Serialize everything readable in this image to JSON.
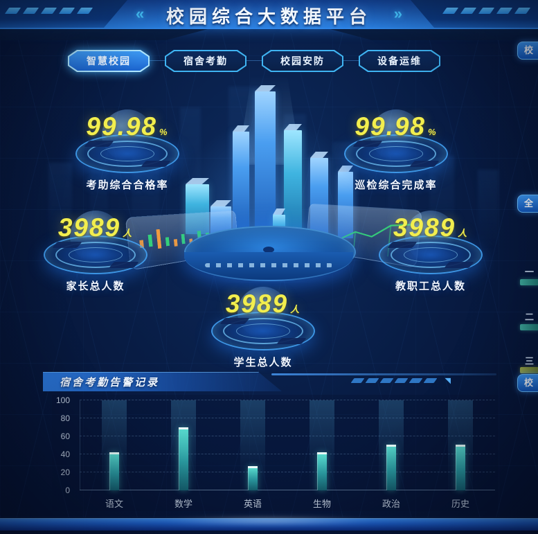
{
  "header": {
    "title": "校园综合大数据平台",
    "left_chevron": "«",
    "right_chevron": "»"
  },
  "tabs": [
    {
      "label": "智慧校园",
      "active": true
    },
    {
      "label": "宿舍考勤",
      "active": false
    },
    {
      "label": "校园安防",
      "active": false
    },
    {
      "label": "设备运维",
      "active": false
    }
  ],
  "stats": [
    {
      "value": "99.98",
      "unit": "%",
      "label": "考助综合合格率"
    },
    {
      "value": "99.98",
      "unit": "%",
      "label": "巡检综合完成率"
    },
    {
      "value": "3989",
      "unit": "人",
      "label": "家长总人数"
    },
    {
      "value": "3989",
      "unit": "人",
      "label": "教职工总人数"
    },
    {
      "value": "3989",
      "unit": "人",
      "label": "学生总人数"
    }
  ],
  "alarm_panel": {
    "title": "宿舍考勤告警记录"
  },
  "chart_data": {
    "type": "bar",
    "title": "宿舍考勤告警记录",
    "categories": [
      "语文",
      "数学",
      "英语",
      "生物",
      "政治",
      "历史"
    ],
    "values": [
      42,
      70,
      27,
      42,
      51,
      51
    ],
    "xlabel": "",
    "ylabel": "",
    "ylim": [
      0,
      100
    ],
    "yticks": [
      0,
      20,
      40,
      60,
      80,
      100
    ],
    "grid": "horizontal-dashed",
    "legend": "none",
    "bar_color": "#49cfc3",
    "band_color": "rgba(70,150,190,0.22)"
  },
  "right_edge": {
    "top_tab_label": "校",
    "middle_tab_label": "全",
    "bottom_tab_label": "校",
    "rank_rows": [
      {
        "label": "一"
      },
      {
        "label": "二"
      },
      {
        "label": "三"
      }
    ]
  },
  "colors": {
    "accent_cyan": "#35c6ff",
    "accent_blue": "#1f6fd6",
    "number_yellow": "#f2ee4e",
    "bar_teal": "#49cfc3",
    "bg_navy": "#07173a"
  }
}
